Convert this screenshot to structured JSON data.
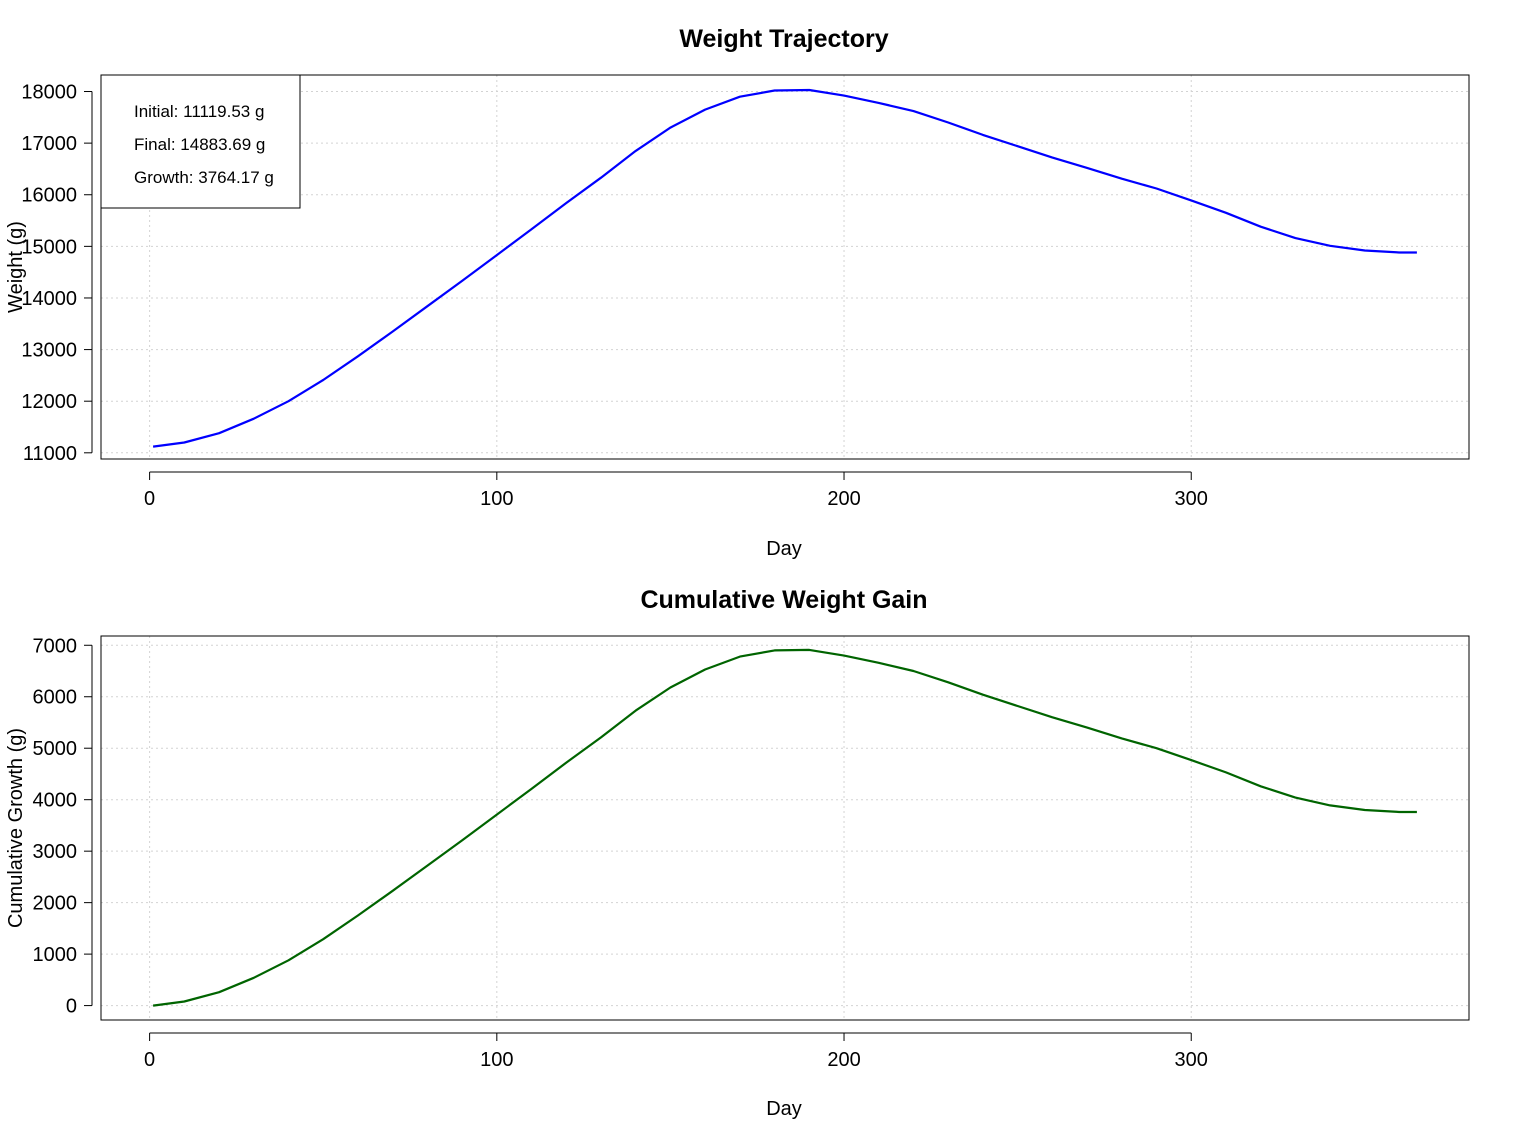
{
  "chart_data": [
    {
      "type": "line",
      "title": "Weight Trajectory",
      "xlabel": "Day",
      "ylabel": "Weight (g)",
      "xlim": [
        -14,
        380
      ],
      "ylim": [
        10880,
        18320
      ],
      "x_ticks": [
        0,
        100,
        200,
        300
      ],
      "y_ticks": [
        11000,
        12000,
        13000,
        14000,
        15000,
        16000,
        17000,
        18000
      ],
      "x_tick_labels": [
        "0",
        "100",
        "200",
        "300"
      ],
      "y_tick_labels": [
        "11000",
        "12000",
        "13000",
        "14000",
        "15000",
        "16000",
        "17000",
        "18000"
      ],
      "grid": true,
      "legend_position": "top-left",
      "annotations": [
        "Initial: 11119.53 g",
        "Final: 14883.69 g",
        "Growth: 3764.17 g"
      ],
      "series": [
        {
          "color": "#0000ff",
          "x": [
            1,
            10,
            20,
            30,
            40,
            50,
            60,
            70,
            80,
            90,
            100,
            110,
            120,
            130,
            140,
            150,
            160,
            170,
            180,
            190,
            200,
            210,
            220,
            230,
            240,
            250,
            260,
            270,
            280,
            290,
            300,
            310,
            320,
            330,
            340,
            350,
            360,
            365
          ],
          "values": [
            11120,
            11200,
            11380,
            11660,
            12000,
            12410,
            12870,
            13350,
            13840,
            14330,
            14830,
            15330,
            15840,
            16330,
            16850,
            17300,
            17650,
            17900,
            18020,
            18030,
            17920,
            17780,
            17620,
            17400,
            17160,
            16940,
            16720,
            16520,
            16310,
            16120,
            15890,
            15650,
            15380,
            15160,
            15010,
            14920,
            14880,
            14880
          ]
        }
      ]
    },
    {
      "type": "line",
      "title": "Cumulative Weight Gain",
      "xlabel": "Day",
      "ylabel": "Cumulative Growth (g)",
      "xlim": [
        -14,
        380
      ],
      "ylim": [
        -280,
        7180
      ],
      "x_ticks": [
        0,
        100,
        200,
        300
      ],
      "y_ticks": [
        0,
        1000,
        2000,
        3000,
        4000,
        5000,
        6000,
        7000
      ],
      "x_tick_labels": [
        "0",
        "100",
        "200",
        "300"
      ],
      "y_tick_labels": [
        "0",
        "1000",
        "2000",
        "3000",
        "4000",
        "5000",
        "6000",
        "7000"
      ],
      "grid": true,
      "series": [
        {
          "color": "#006400",
          "x": [
            1,
            10,
            20,
            30,
            40,
            50,
            60,
            70,
            80,
            90,
            100,
            110,
            120,
            130,
            140,
            150,
            160,
            170,
            180,
            190,
            200,
            210,
            220,
            230,
            240,
            250,
            260,
            270,
            280,
            290,
            300,
            310,
            320,
            330,
            340,
            350,
            360,
            365
          ],
          "values": [
            0,
            80,
            260,
            540,
            880,
            1290,
            1750,
            2230,
            2720,
            3210,
            3710,
            4210,
            4720,
            5210,
            5730,
            6180,
            6530,
            6780,
            6900,
            6910,
            6800,
            6660,
            6500,
            6280,
            6040,
            5820,
            5600,
            5400,
            5190,
            5000,
            4770,
            4530,
            4260,
            4040,
            3890,
            3800,
            3760,
            3760
          ]
        }
      ]
    }
  ]
}
